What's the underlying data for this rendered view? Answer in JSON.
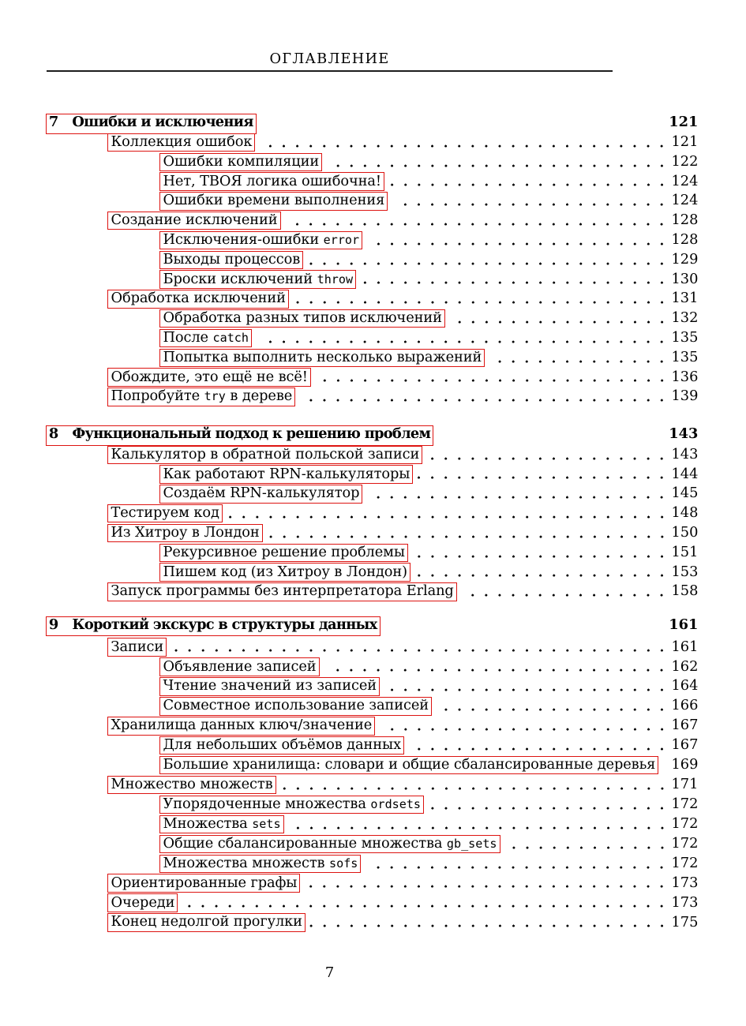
{
  "page": {
    "header_title": "ОГЛАВЛЕНИЕ",
    "footer_page_number": "7",
    "link_border_color": "#dd1513"
  },
  "toc": {
    "chapters": [
      {
        "number": "7",
        "title": "Ошибки и исключения",
        "page": "121",
        "entries": [
          {
            "level": 2,
            "segments": [
              {
                "text": "Коллекция ошибок"
              }
            ],
            "page": "121",
            "dots": true
          },
          {
            "level": 3,
            "segments": [
              {
                "text": "Ошибки компиляции"
              }
            ],
            "page": "122",
            "dots": true
          },
          {
            "level": 3,
            "segments": [
              {
                "text": "Нет, ТВОЯ логика ошибочна!"
              }
            ],
            "page": "124",
            "dots": true
          },
          {
            "level": 3,
            "segments": [
              {
                "text": "Ошибки времени выполнения"
              }
            ],
            "page": "124",
            "dots": true
          },
          {
            "level": 2,
            "segments": [
              {
                "text": "Создание исключений"
              }
            ],
            "page": "128",
            "dots": true
          },
          {
            "level": 3,
            "segments": [
              {
                "text": "Исключения-ошибки "
              },
              {
                "text": "error",
                "mono": true
              }
            ],
            "page": "128",
            "dots": true
          },
          {
            "level": 3,
            "segments": [
              {
                "text": "Выходы процессов"
              }
            ],
            "page": "129",
            "dots": true
          },
          {
            "level": 3,
            "segments": [
              {
                "text": "Броски исключений "
              },
              {
                "text": "throw",
                "mono": true
              }
            ],
            "page": "130",
            "dots": true
          },
          {
            "level": 2,
            "segments": [
              {
                "text": "Обработка исключений"
              }
            ],
            "page": "131",
            "dots": true
          },
          {
            "level": 3,
            "segments": [
              {
                "text": "Обработка разных типов исключений"
              }
            ],
            "page": "132",
            "dots": true
          },
          {
            "level": 3,
            "segments": [
              {
                "text": "После "
              },
              {
                "text": "catch",
                "mono": true
              }
            ],
            "page": "135",
            "dots": true
          },
          {
            "level": 3,
            "segments": [
              {
                "text": "Попытка выполнить несколько выражений"
              }
            ],
            "page": "135",
            "dots": true
          },
          {
            "level": 2,
            "segments": [
              {
                "text": "Обождите, это ещё не всё!"
              }
            ],
            "page": "136",
            "dots": true
          },
          {
            "level": 2,
            "segments": [
              {
                "text": "Попробуйте "
              },
              {
                "text": "try",
                "mono": true
              },
              {
                "text": " в дереве"
              }
            ],
            "page": "139",
            "dots": true
          }
        ]
      },
      {
        "number": "8",
        "title": "Функциональный подход к решению проблем",
        "page": "143",
        "entries": [
          {
            "level": 2,
            "segments": [
              {
                "text": "Калькулятор в обратной польской записи"
              }
            ],
            "page": "143",
            "dots": true
          },
          {
            "level": 3,
            "segments": [
              {
                "text": "Как работают RPN-калькуляторы"
              }
            ],
            "page": "144",
            "dots": true
          },
          {
            "level": 3,
            "segments": [
              {
                "text": "Создаём RPN-калькулятор"
              }
            ],
            "page": "145",
            "dots": true
          },
          {
            "level": 2,
            "segments": [
              {
                "text": "Тестируем код"
              }
            ],
            "page": "148",
            "dots": true
          },
          {
            "level": 2,
            "segments": [
              {
                "text": "Из Хитроу в Лондон"
              }
            ],
            "page": "150",
            "dots": true
          },
          {
            "level": 3,
            "segments": [
              {
                "text": "Рекурсивное решение проблемы"
              }
            ],
            "page": "151",
            "dots": true
          },
          {
            "level": 3,
            "segments": [
              {
                "text": "Пишем код (из Хитроу в Лондон)"
              }
            ],
            "page": "153",
            "dots": true
          },
          {
            "level": 2,
            "segments": [
              {
                "text": "Запуск программы без интерпретатора Erlang"
              }
            ],
            "page": "158",
            "dots": true
          }
        ]
      },
      {
        "number": "9",
        "title": "Короткий экскурс в структуры данных",
        "page": "161",
        "entries": [
          {
            "level": 2,
            "segments": [
              {
                "text": "Записи"
              }
            ],
            "page": "161",
            "dots": true
          },
          {
            "level": 3,
            "segments": [
              {
                "text": "Объявление записей"
              }
            ],
            "page": "162",
            "dots": true
          },
          {
            "level": 3,
            "segments": [
              {
                "text": "Чтение значений из записей"
              }
            ],
            "page": "164",
            "dots": true
          },
          {
            "level": 3,
            "segments": [
              {
                "text": "Совместное использование записей"
              }
            ],
            "page": "166",
            "dots": true
          },
          {
            "level": 2,
            "segments": [
              {
                "text": "Хранилища данных ключ/значение"
              }
            ],
            "page": "167",
            "dots": true
          },
          {
            "level": 3,
            "segments": [
              {
                "text": "Для небольших объёмов данных"
              }
            ],
            "page": "167",
            "dots": true
          },
          {
            "level": 3,
            "segments": [
              {
                "text": "Большие хранилища: словари и общие сбалансированные деревья"
              }
            ],
            "page": "169",
            "dots": false
          },
          {
            "level": 2,
            "segments": [
              {
                "text": "Множество множеств"
              }
            ],
            "page": "171",
            "dots": true
          },
          {
            "level": 3,
            "segments": [
              {
                "text": "Упорядоченные множества "
              },
              {
                "text": "ordsets",
                "mono": true
              }
            ],
            "page": "172",
            "dots": true
          },
          {
            "level": 3,
            "segments": [
              {
                "text": "Множества "
              },
              {
                "text": "sets",
                "mono": true
              }
            ],
            "page": "172",
            "dots": true
          },
          {
            "level": 3,
            "segments": [
              {
                "text": "Общие сбалансированные множества "
              },
              {
                "text": "gb_sets",
                "mono": true
              }
            ],
            "page": "172",
            "dots": true
          },
          {
            "level": 3,
            "segments": [
              {
                "text": "Множества множеств "
              },
              {
                "text": "sofs",
                "mono": true
              }
            ],
            "page": "172",
            "dots": true
          },
          {
            "level": 2,
            "segments": [
              {
                "text": "Ориентированные графы"
              }
            ],
            "page": "173",
            "dots": true
          },
          {
            "level": 2,
            "segments": [
              {
                "text": "Очереди"
              }
            ],
            "page": "173",
            "dots": true
          },
          {
            "level": 2,
            "segments": [
              {
                "text": "Конец недолгой прогулки"
              }
            ],
            "page": "175",
            "dots": true
          }
        ]
      }
    ]
  }
}
